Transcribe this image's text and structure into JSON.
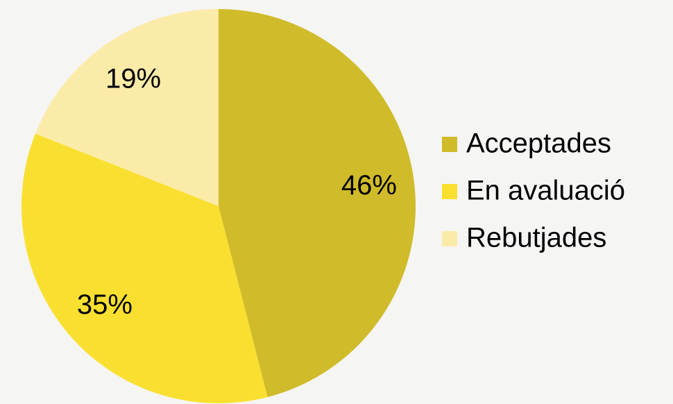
{
  "chart_data": {
    "type": "pie",
    "categories": [
      "Acceptades",
      "En avaluació",
      "Rebutjades"
    ],
    "values": [
      46,
      35,
      19
    ],
    "value_labels": [
      "46%",
      "35%",
      "19%"
    ],
    "colors": [
      "#d0bb2a",
      "#f9e030",
      "#fbeba8"
    ],
    "legend": "right"
  }
}
